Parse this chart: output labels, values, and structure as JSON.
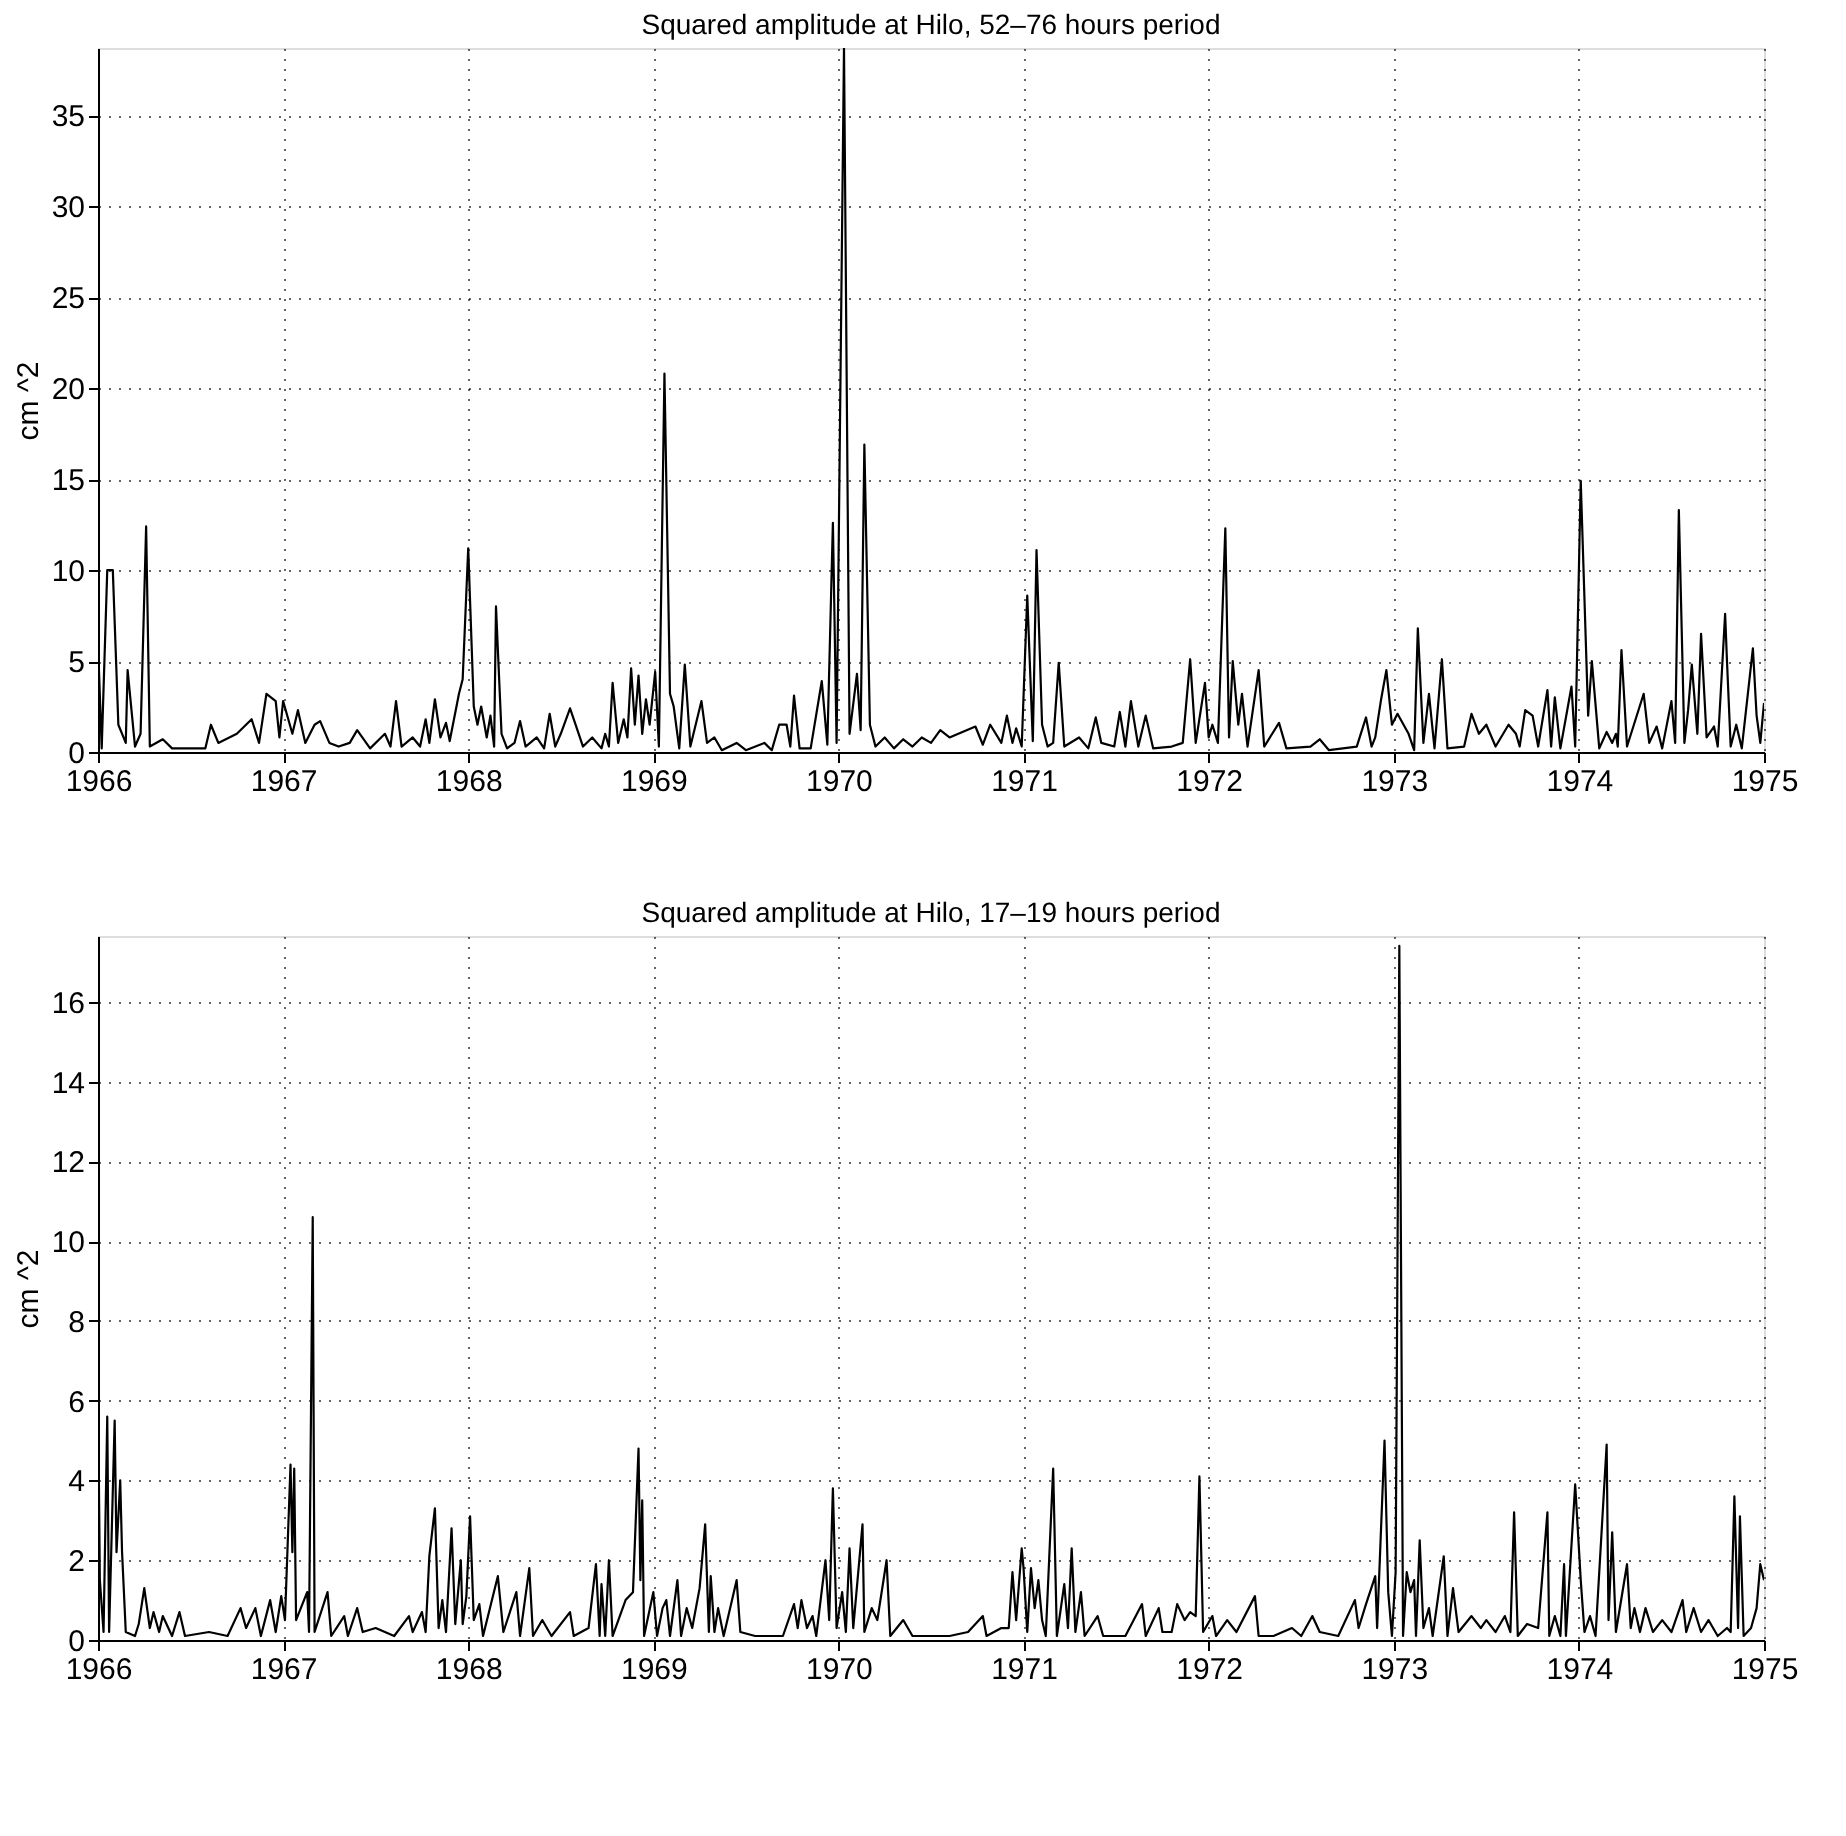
{
  "chart_data": [
    {
      "type": "line",
      "title": "Squared amplitude at Hilo, 52–76 hours period",
      "ylabel": "cm ^2",
      "xlim": [
        1966,
        1975
      ],
      "xticks": [
        1966,
        1967,
        1968,
        1969,
        1970,
        1971,
        1972,
        1973,
        1974,
        1975
      ],
      "ylim": [
        0,
        38.7
      ],
      "yticks": [
        0,
        5,
        10,
        15,
        20,
        25,
        30,
        35
      ],
      "grid": true,
      "line_style": "solid",
      "marker": "none",
      "series": [
        {
          "color": "#000000",
          "x": [
            1966.0,
            1966.02,
            1966.05,
            1966.08,
            1966.11,
            1966.15,
            1966.16,
            1966.2,
            1966.23,
            1966.26,
            1966.28,
            1966.35,
            1966.4,
            1966.58,
            1966.61,
            1966.65,
            1966.75,
            1966.83,
            1966.87,
            1966.91,
            1966.96,
            1966.98,
            1967.0,
            1967.05,
            1967.08,
            1967.12,
            1967.17,
            1967.2,
            1967.25,
            1967.3,
            1967.36,
            1967.4,
            1967.47,
            1967.55,
            1967.58,
            1967.61,
            1967.64,
            1967.7,
            1967.74,
            1967.77,
            1967.79,
            1967.82,
            1967.85,
            1967.88,
            1967.9,
            1967.95,
            1967.97,
            1968.0,
            1968.03,
            1968.05,
            1968.07,
            1968.1,
            1968.12,
            1968.14,
            1968.15,
            1968.18,
            1968.21,
            1968.25,
            1968.28,
            1968.31,
            1968.37,
            1968.41,
            1968.44,
            1968.47,
            1968.5,
            1968.55,
            1968.58,
            1968.62,
            1968.67,
            1968.72,
            1968.74,
            1968.76,
            1968.78,
            1968.81,
            1968.84,
            1968.86,
            1968.88,
            1968.9,
            1968.92,
            1968.94,
            1968.96,
            1968.98,
            1969.01,
            1969.03,
            1969.06,
            1969.09,
            1969.11,
            1969.14,
            1969.17,
            1969.2,
            1969.26,
            1969.29,
            1969.33,
            1969.37,
            1969.45,
            1969.5,
            1969.6,
            1969.64,
            1969.68,
            1969.72,
            1969.74,
            1969.76,
            1969.79,
            1969.85,
            1969.91,
            1969.94,
            1969.97,
            1969.99,
            1970.03,
            1970.06,
            1970.1,
            1970.12,
            1970.14,
            1970.17,
            1970.2,
            1970.25,
            1970.3,
            1970.35,
            1970.4,
            1970.45,
            1970.5,
            1970.55,
            1970.6,
            1970.74,
            1970.78,
            1970.82,
            1970.88,
            1970.91,
            1970.94,
            1970.96,
            1970.99,
            1971.02,
            1971.05,
            1971.07,
            1971.1,
            1971.13,
            1971.16,
            1971.19,
            1971.22,
            1971.3,
            1971.35,
            1971.39,
            1971.42,
            1971.49,
            1971.52,
            1971.55,
            1971.58,
            1971.62,
            1971.66,
            1971.7,
            1971.8,
            1971.86,
            1971.9,
            1971.93,
            1971.98,
            1972.0,
            1972.02,
            1972.05,
            1972.09,
            1972.11,
            1972.13,
            1972.16,
            1972.18,
            1972.21,
            1972.27,
            1972.3,
            1972.38,
            1972.42,
            1972.55,
            1972.6,
            1972.65,
            1972.8,
            1972.85,
            1972.88,
            1972.9,
            1972.93,
            1972.96,
            1972.99,
            1973.02,
            1973.08,
            1973.11,
            1973.13,
            1973.16,
            1973.19,
            1973.22,
            1973.26,
            1973.29,
            1973.38,
            1973.42,
            1973.46,
            1973.5,
            1973.55,
            1973.62,
            1973.66,
            1973.68,
            1973.71,
            1973.75,
            1973.78,
            1973.83,
            1973.85,
            1973.87,
            1973.9,
            1973.96,
            1973.98,
            1974.01,
            1974.05,
            1974.07,
            1974.11,
            1974.15,
            1974.18,
            1974.2,
            1974.21,
            1974.23,
            1974.26,
            1974.35,
            1974.38,
            1974.42,
            1974.45,
            1974.5,
            1974.52,
            1974.54,
            1974.57,
            1974.59,
            1974.61,
            1974.64,
            1974.66,
            1974.69,
            1974.73,
            1974.75,
            1974.79,
            1974.8,
            1974.82,
            1974.85,
            1974.88,
            1974.94,
            1974.96,
            1974.98,
            1975.0
          ],
          "values": [
            6,
            0.2,
            10,
            10,
            1.5,
            0.5,
            4.5,
            0.3,
            1,
            12.4,
            0.3,
            0.7,
            0.2,
            0.2,
            1.5,
            0.5,
            1,
            1.8,
            0.5,
            3.2,
            2.8,
            0.8,
            2.8,
            1,
            2.3,
            0.5,
            1.5,
            1.7,
            0.5,
            0.3,
            0.5,
            1.2,
            0.2,
            1,
            0.3,
            2.8,
            0.3,
            0.8,
            0.3,
            1.8,
            0.5,
            2.9,
            0.8,
            1.6,
            0.6,
            3.2,
            4,
            11.2,
            2.5,
            1.5,
            2.5,
            0.8,
            2,
            0.3,
            8.0,
            1,
            0.2,
            0.5,
            1.7,
            0.3,
            0.8,
            0.2,
            2.1,
            0.3,
            1,
            2.4,
            1.5,
            0.3,
            0.8,
            0.2,
            1,
            0.3,
            3.8,
            0.5,
            1.8,
            0.8,
            4.6,
            1.5,
            4.2,
            1,
            2.9,
            1.5,
            4.4,
            0.3,
            20.8,
            3.2,
            2.5,
            0.2,
            4.8,
            0.3,
            2.8,
            0.5,
            0.8,
            0.1,
            0.5,
            0.1,
            0.5,
            0.1,
            1.5,
            1.5,
            0.3,
            3.1,
            0.2,
            0.2,
            3.9,
            0.4,
            12.6,
            0.5,
            38.7,
            1.0,
            4.3,
            1.2,
            16.9,
            1.5,
            0.3,
            0.8,
            0.2,
            0.7,
            0.3,
            0.8,
            0.5,
            1.2,
            0.8,
            1.4,
            0.4,
            1.5,
            0.5,
            2.0,
            0.5,
            1.3,
            0.3,
            8.6,
            0.6,
            11.1,
            1.5,
            0.3,
            0.5,
            4.9,
            0.3,
            0.8,
            0.2,
            1.9,
            0.5,
            0.3,
            2.2,
            0.3,
            2.8,
            0.3,
            2.0,
            0.2,
            0.3,
            0.5,
            5.1,
            0.5,
            3.8,
            0.8,
            1.5,
            0.5,
            12.3,
            0.8,
            5.0,
            1.5,
            3.2,
            0.3,
            4.5,
            0.3,
            1.6,
            0.2,
            0.3,
            0.7,
            0.1,
            0.3,
            1.9,
            0.3,
            0.8,
            2.8,
            4.5,
            1.5,
            2.1,
            1.0,
            0.1,
            6.8,
            0.5,
            3.2,
            0.2,
            5.1,
            0.2,
            0.3,
            2.1,
            1.0,
            1.5,
            0.3,
            1.5,
            1.0,
            0.3,
            2.3,
            2.0,
            0.3,
            3.4,
            0.3,
            3.0,
            0.2,
            3.6,
            0.3,
            14.9,
            2.0,
            5.0,
            0.2,
            1.1,
            0.5,
            1.0,
            0.3,
            5.6,
            0.3,
            3.2,
            0.5,
            1.4,
            0.2,
            2.8,
            0.5,
            13.3,
            0.5,
            2.3,
            4.8,
            1.0,
            6.5,
            0.8,
            1.4,
            0.3,
            7.6,
            5.0,
            0.3,
            1.5,
            0.2,
            5.7,
            2.0,
            0.5,
            2.7
          ]
        }
      ]
    },
    {
      "type": "line",
      "title": "Squared amplitude at Hilo, 17–19 hours period",
      "ylabel": "cm ^2",
      "xlim": [
        1966,
        1975
      ],
      "xticks": [
        1966,
        1967,
        1968,
        1969,
        1970,
        1971,
        1972,
        1973,
        1974,
        1975
      ],
      "ylim": [
        0,
        17.65
      ],
      "yticks": [
        0,
        2,
        4,
        6,
        8,
        10,
        12,
        14,
        16
      ],
      "grid": true,
      "line_style": "solid",
      "marker": "none",
      "series": [
        {
          "color": "#000000",
          "x": [
            1966.0,
            1966.01,
            1966.03,
            1966.05,
            1966.06,
            1966.09,
            1966.1,
            1966.12,
            1966.13,
            1966.15,
            1966.2,
            1966.22,
            1966.25,
            1966.28,
            1966.3,
            1966.33,
            1966.35,
            1966.4,
            1966.44,
            1966.47,
            1966.6,
            1966.7,
            1966.77,
            1966.8,
            1966.85,
            1966.88,
            1966.93,
            1966.96,
            1966.99,
            1967.01,
            1967.04,
            1967.05,
            1967.06,
            1967.07,
            1967.13,
            1967.14,
            1967.16,
            1967.17,
            1967.24,
            1967.26,
            1967.33,
            1967.35,
            1967.4,
            1967.43,
            1967.5,
            1967.6,
            1967.68,
            1967.7,
            1967.75,
            1967.77,
            1967.79,
            1967.82,
            1967.84,
            1967.86,
            1967.88,
            1967.91,
            1967.93,
            1967.96,
            1967.97,
            1967.99,
            1968.01,
            1968.03,
            1968.06,
            1968.08,
            1968.16,
            1968.19,
            1968.26,
            1968.28,
            1968.33,
            1968.35,
            1968.4,
            1968.45,
            1968.55,
            1968.57,
            1968.65,
            1968.69,
            1968.71,
            1968.72,
            1968.74,
            1968.76,
            1968.78,
            1968.85,
            1968.89,
            1968.92,
            1968.93,
            1968.94,
            1968.95,
            1969.0,
            1969.02,
            1969.05,
            1969.07,
            1969.09,
            1969.13,
            1969.15,
            1969.18,
            1969.21,
            1969.25,
            1969.28,
            1969.3,
            1969.31,
            1969.33,
            1969.35,
            1969.38,
            1969.45,
            1969.47,
            1969.55,
            1969.7,
            1969.76,
            1969.78,
            1969.8,
            1969.83,
            1969.86,
            1969.88,
            1969.93,
            1969.95,
            1969.97,
            1969.99,
            1970.02,
            1970.04,
            1970.06,
            1970.08,
            1970.13,
            1970.14,
            1970.18,
            1970.21,
            1970.26,
            1970.28,
            1970.35,
            1970.4,
            1970.5,
            1970.6,
            1970.7,
            1970.78,
            1970.8,
            1970.88,
            1970.92,
            1970.94,
            1970.96,
            1970.99,
            1971.0,
            1971.02,
            1971.04,
            1971.06,
            1971.08,
            1971.1,
            1971.12,
            1971.16,
            1971.18,
            1971.22,
            1971.24,
            1971.26,
            1971.28,
            1971.31,
            1971.33,
            1971.4,
            1971.43,
            1971.55,
            1971.64,
            1971.66,
            1971.73,
            1971.75,
            1971.8,
            1971.83,
            1971.87,
            1971.9,
            1971.93,
            1971.95,
            1971.97,
            1972.02,
            1972.04,
            1972.1,
            1972.15,
            1972.25,
            1972.27,
            1972.35,
            1972.45,
            1972.5,
            1972.56,
            1972.6,
            1972.7,
            1972.79,
            1972.81,
            1972.85,
            1972.9,
            1972.91,
            1972.95,
            1972.97,
            1972.99,
            1973.01,
            1973.03,
            1973.05,
            1973.07,
            1973.09,
            1973.11,
            1973.12,
            1973.14,
            1973.16,
            1973.19,
            1973.21,
            1973.27,
            1973.29,
            1973.32,
            1973.35,
            1973.42,
            1973.47,
            1973.5,
            1973.55,
            1973.6,
            1973.63,
            1973.65,
            1973.67,
            1973.72,
            1973.78,
            1973.83,
            1973.84,
            1973.87,
            1973.9,
            1973.92,
            1973.93,
            1973.98,
            1974.01,
            1974.03,
            1974.06,
            1974.09,
            1974.15,
            1974.16,
            1974.18,
            1974.2,
            1974.26,
            1974.28,
            1974.3,
            1974.33,
            1974.36,
            1974.4,
            1974.45,
            1974.5,
            1974.56,
            1974.58,
            1974.62,
            1974.66,
            1974.7,
            1974.75,
            1974.8,
            1974.82,
            1974.84,
            1974.86,
            1974.87,
            1974.89,
            1974.93,
            1974.96,
            1974.98,
            1975.0
          ],
          "values": [
            6.3,
            1.5,
            0.2,
            5.6,
            0.2,
            5.5,
            2.2,
            4.0,
            2.2,
            0.2,
            0.1,
            0.4,
            1.3,
            0.3,
            0.7,
            0.2,
            0.6,
            0.1,
            0.7,
            0.1,
            0.2,
            0.1,
            0.8,
            0.3,
            0.8,
            0.1,
            1.0,
            0.2,
            1.1,
            0.5,
            4.4,
            2.2,
            4.3,
            0.5,
            1.2,
            0.2,
            10.6,
            0.2,
            1.2,
            0.1,
            0.6,
            0.1,
            0.8,
            0.2,
            0.3,
            0.1,
            0.6,
            0.2,
            0.7,
            0.2,
            2.1,
            3.3,
            0.3,
            1.0,
            0.2,
            2.8,
            0.4,
            2.0,
            0.4,
            1.1,
            3.1,
            0.5,
            0.9,
            0.1,
            1.6,
            0.2,
            1.2,
            0.1,
            1.8,
            0.1,
            0.5,
            0.1,
            0.7,
            0.1,
            0.3,
            1.9,
            0.1,
            1.4,
            0.1,
            2.0,
            0.1,
            1.0,
            1.2,
            4.8,
            1.5,
            3.5,
            0.1,
            1.2,
            0.1,
            0.8,
            1.0,
            0.1,
            1.5,
            0.1,
            0.8,
            0.3,
            1.3,
            2.9,
            0.2,
            1.6,
            0.2,
            0.8,
            0.1,
            1.5,
            0.2,
            0.1,
            0.1,
            0.9,
            0.3,
            1.0,
            0.3,
            0.6,
            0.1,
            2.0,
            0.5,
            3.8,
            0.3,
            1.2,
            0.2,
            2.3,
            0.3,
            2.9,
            0.2,
            0.8,
            0.5,
            2.0,
            0.1,
            0.5,
            0.1,
            0.1,
            0.1,
            0.2,
            0.6,
            0.1,
            0.3,
            0.3,
            1.7,
            0.5,
            2.3,
            1.8,
            0.2,
            1.8,
            0.8,
            1.5,
            0.5,
            0.1,
            4.3,
            0.1,
            1.4,
            0.3,
            2.3,
            0.2,
            1.2,
            0.1,
            0.6,
            0.1,
            0.1,
            0.9,
            0.1,
            0.8,
            0.2,
            0.2,
            0.9,
            0.5,
            0.7,
            0.6,
            4.1,
            0.2,
            0.6,
            0.1,
            0.5,
            0.2,
            1.1,
            0.1,
            0.1,
            0.3,
            0.1,
            0.6,
            0.2,
            0.1,
            1.0,
            0.3,
            0.9,
            1.6,
            0.3,
            5.0,
            1.2,
            0.1,
            1.7,
            17.4,
            0.1,
            1.7,
            1.2,
            1.5,
            0.1,
            2.5,
            0.3,
            0.8,
            0.1,
            2.1,
            0.1,
            1.3,
            0.2,
            0.6,
            0.3,
            0.5,
            0.2,
            0.6,
            0.2,
            3.2,
            0.1,
            0.4,
            0.3,
            3.2,
            0.1,
            0.6,
            0.1,
            1.9,
            0.1,
            3.9,
            1.5,
            0.2,
            0.6,
            0.1,
            4.9,
            0.5,
            2.7,
            0.2,
            1.9,
            0.3,
            0.8,
            0.2,
            0.8,
            0.2,
            0.5,
            0.2,
            1.0,
            0.2,
            0.8,
            0.2,
            0.5,
            0.1,
            0.3,
            0.2,
            3.6,
            0.3,
            3.1,
            0.1,
            0.3,
            0.8,
            1.9,
            1.5
          ]
        }
      ]
    }
  ]
}
